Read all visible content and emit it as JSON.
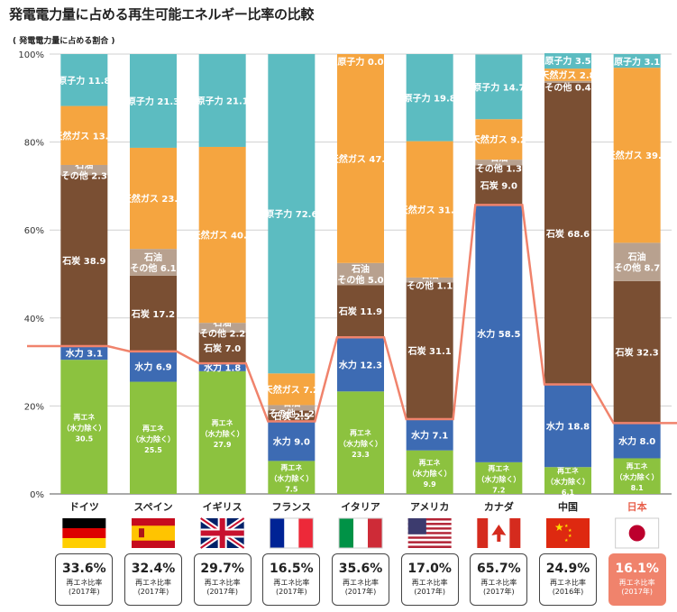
{
  "title": "発電電力量に占める再生可能エネルギー比率の比較",
  "subtitle": "( 発電電力量に占める割合 )",
  "colors": {
    "再エネ": "#8cc23f",
    "水力": "#3d6bb3",
    "石炭": "#7a4f33",
    "石油その他": "#b8a18f",
    "天然ガス": "#f5a540",
    "原子力": "#5cbcc1",
    "line": "#f0836c"
  },
  "chart_data": {
    "type": "bar",
    "stacked": true,
    "ylim": [
      0,
      100
    ],
    "yticks": [
      "0%",
      "20%",
      "40%",
      "60%",
      "80%",
      "100%"
    ],
    "grid": true,
    "categories": [
      "ドイツ",
      "スペイン",
      "イギリス",
      "フランス",
      "イタリア",
      "アメリカ",
      "カナダ",
      "中国",
      "日本"
    ],
    "series": [
      {
        "key": "再エネ",
        "values": [
          30.5,
          25.5,
          27.9,
          7.5,
          23.3,
          9.9,
          7.2,
          6.1,
          8.1
        ]
      },
      {
        "key": "水力",
        "values": [
          3.1,
          6.9,
          1.8,
          9.0,
          12.3,
          7.1,
          58.5,
          18.8,
          8.0
        ]
      },
      {
        "key": "石炭",
        "values": [
          38.9,
          17.2,
          7.0,
          2.5,
          11.9,
          31.1,
          9.0,
          68.6,
          32.3
        ]
      },
      {
        "key": "石油その他",
        "values": [
          2.3,
          6.1,
          2.2,
          1.2,
          5.0,
          1.1,
          1.3,
          0.4,
          8.7
        ]
      },
      {
        "key": "天然ガス",
        "values": [
          13.4,
          23.0,
          40.0,
          7.2,
          47.5,
          31.0,
          9.2,
          2.8,
          39.8
        ]
      },
      {
        "key": "原子力",
        "values": [
          11.8,
          21.3,
          21.1,
          72.6,
          0.0,
          19.8,
          14.7,
          3.5,
          3.1
        ]
      }
    ],
    "renewable_ratio": [
      "33.6%",
      "32.4%",
      "29.7%",
      "16.5%",
      "35.6%",
      "17.0%",
      "65.7%",
      "24.9%",
      "16.1%"
    ],
    "ratio_label": "再エネ比率",
    "ratio_year": [
      "(2017年)",
      "(2017年)",
      "(2017年)",
      "(2017年)",
      "(2017年)",
      "(2017年)",
      "(2017年)",
      "(2016年)",
      "(2017年)"
    ]
  },
  "segment_text": {
    "再エネ_lines": [
      "再エネ",
      "（水力除く）"
    ],
    "水力": "水力",
    "石炭": "石炭",
    "石油その他_lines": [
      "石油",
      "その他"
    ],
    "天然ガス": "天然ガス",
    "原子力": "原子力"
  }
}
